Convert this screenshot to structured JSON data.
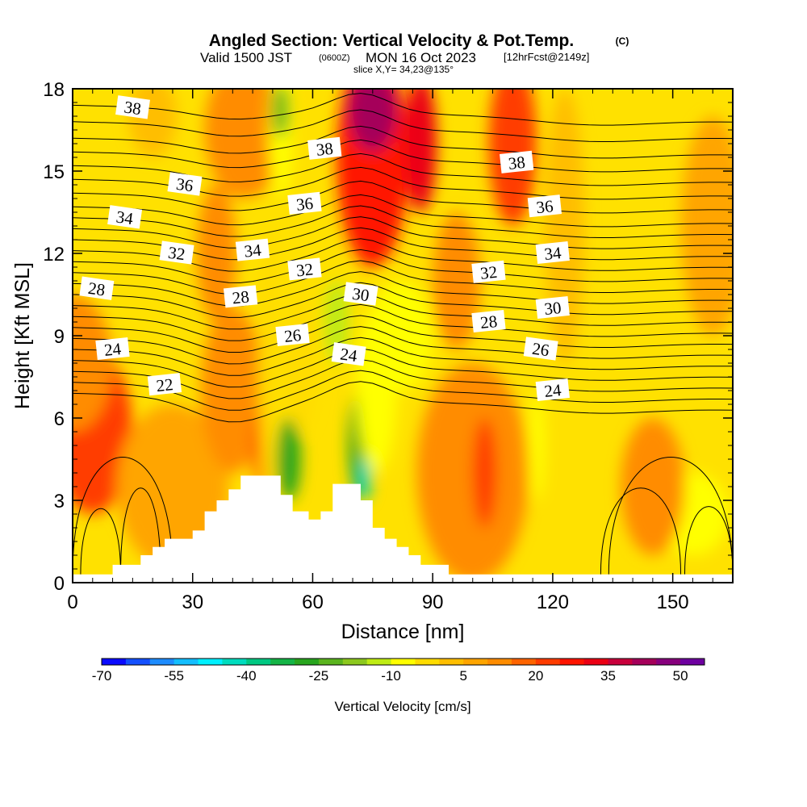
{
  "title_line1": "Angled Section: Vertical Velocity & Pot.Temp.",
  "title_tag": "(C)",
  "title_line2_a": "Valid 1500 JST",
  "title_line2_b": "(0600Z)",
  "title_line2_c": "MON 16 Oct 2023",
  "title_line2_d": "[12hrFcst@2149z]",
  "title_line3": "slice X,Y= 34,23@135°",
  "colorbar_label": "Vertical Velocity [cm/s]",
  "chart_data": {
    "type": "contour",
    "title": "Angled Section: Vertical Velocity & Pot.Temp.",
    "xlabel": "Distance [nm]",
    "ylabel": "Height [Kft MSL]",
    "xlim": [
      0,
      165
    ],
    "ylim": [
      0,
      18
    ],
    "x_ticks": [
      0,
      30,
      60,
      90,
      120,
      150
    ],
    "y_ticks": [
      0,
      3,
      6,
      9,
      12,
      15,
      18
    ],
    "colorbar": {
      "label": "Vertical Velocity [cm/s]",
      "tick_labels": [
        "-70",
        "-55",
        "-40",
        "-25",
        "-10",
        "5",
        "20",
        "35",
        "50"
      ],
      "colors": [
        "#0a0aff",
        "#1450ff",
        "#1e8cff",
        "#14beff",
        "#00f0ff",
        "#00dcbe",
        "#00c882",
        "#14b446",
        "#28a51e",
        "#5ab41e",
        "#8cc81e",
        "#beeb14",
        "#ffff00",
        "#ffdc00",
        "#ffbe00",
        "#ffa500",
        "#ff8c00",
        "#ff6400",
        "#ff3c00",
        "#ff1400",
        "#eb0014",
        "#c8003c",
        "#a5005a",
        "#87007d",
        "#6e00a0"
      ]
    },
    "terrain": [
      [
        0,
        0.3
      ],
      [
        10,
        0.3
      ],
      [
        10,
        0.65
      ],
      [
        17,
        0.65
      ],
      [
        17,
        1.0
      ],
      [
        20,
        1.0
      ],
      [
        20,
        1.3
      ],
      [
        23,
        1.3
      ],
      [
        23,
        1.6
      ],
      [
        30,
        1.6
      ],
      [
        30,
        1.9
      ],
      [
        33,
        1.9
      ],
      [
        33,
        2.6
      ],
      [
        36,
        2.6
      ],
      [
        36,
        3.0
      ],
      [
        39,
        3.0
      ],
      [
        39,
        3.4
      ],
      [
        42,
        3.4
      ],
      [
        42,
        3.9
      ],
      [
        52,
        3.9
      ],
      [
        52,
        3.2
      ],
      [
        55,
        3.2
      ],
      [
        55,
        2.6
      ],
      [
        59,
        2.6
      ],
      [
        59,
        2.3
      ],
      [
        62,
        2.3
      ],
      [
        62,
        2.6
      ],
      [
        65,
        2.6
      ],
      [
        65,
        3.6
      ],
      [
        72,
        3.6
      ],
      [
        72,
        3.0
      ],
      [
        75,
        3.0
      ],
      [
        75,
        2.0
      ],
      [
        78,
        2.0
      ],
      [
        78,
        1.6
      ],
      [
        81,
        1.6
      ],
      [
        81,
        1.3
      ],
      [
        84,
        1.3
      ],
      [
        84,
        1.0
      ],
      [
        87,
        1.0
      ],
      [
        87,
        0.65
      ],
      [
        94,
        0.65
      ],
      [
        94,
        0.3
      ],
      [
        165,
        0.3
      ]
    ],
    "velocity_cells": [
      {
        "x": 3,
        "y": 6.5,
        "rx": 6,
        "ry": 1.6,
        "value": 35
      },
      {
        "x": 5,
        "y": 5.5,
        "rx": 10,
        "ry": 3.0,
        "value": 20
      },
      {
        "x": 0,
        "y": 8.0,
        "rx": 10,
        "ry": 2.5,
        "value": 12
      },
      {
        "x": 25,
        "y": 3.5,
        "rx": 14,
        "ry": 3.0,
        "value": 5
      },
      {
        "x": 40,
        "y": 7.0,
        "rx": 8,
        "ry": 3.0,
        "value": 10
      },
      {
        "x": 43,
        "y": 16.5,
        "rx": 10,
        "ry": 2.5,
        "value": 12
      },
      {
        "x": 20,
        "y": 17.0,
        "rx": 6,
        "ry": 1.5,
        "value": 0
      },
      {
        "x": 36,
        "y": 12.0,
        "rx": 5,
        "ry": 2.5,
        "value": 12
      },
      {
        "x": 52,
        "y": 16.5,
        "rx": 3,
        "ry": 2.5,
        "value": -10
      },
      {
        "x": 52,
        "y": 17.2,
        "rx": 2,
        "ry": 1.0,
        "value": -25
      },
      {
        "x": 47,
        "y": 5.0,
        "rx": 2,
        "ry": 1.5,
        "value": 18
      },
      {
        "x": 49,
        "y": 8.0,
        "rx": 2.5,
        "ry": 5.0,
        "value": -5
      },
      {
        "x": 54,
        "y": 4.5,
        "rx": 3,
        "ry": 1.5,
        "value": -28
      },
      {
        "x": 57,
        "y": 8.0,
        "rx": 4,
        "ry": 2.5,
        "value": -5
      },
      {
        "x": 66,
        "y": 9.5,
        "rx": 3,
        "ry": 1.5,
        "value": -15
      },
      {
        "x": 72,
        "y": 5.0,
        "rx": 3,
        "ry": 2.0,
        "value": -30
      },
      {
        "x": 73,
        "y": 3.8,
        "rx": 1.5,
        "ry": 0.8,
        "value": -45
      },
      {
        "x": 76,
        "y": 7.0,
        "rx": 5,
        "ry": 3.0,
        "value": -10
      },
      {
        "x": 82,
        "y": 9.0,
        "rx": 8,
        "ry": 2.0,
        "value": -10
      },
      {
        "x": 75,
        "y": 15.5,
        "rx": 9,
        "ry": 4.0,
        "value": 25
      },
      {
        "x": 75,
        "y": 17.2,
        "rx": 6,
        "ry": 1.5,
        "value": 38
      },
      {
        "x": 87,
        "y": 16.0,
        "rx": 4,
        "ry": 2.5,
        "value": 30
      },
      {
        "x": 100,
        "y": 4.0,
        "rx": 14,
        "ry": 4.0,
        "value": 8
      },
      {
        "x": 103,
        "y": 4.0,
        "rx": 3,
        "ry": 2.0,
        "value": 18
      },
      {
        "x": 96,
        "y": 11.0,
        "rx": 6,
        "ry": 2.5,
        "value": 8
      },
      {
        "x": 110,
        "y": 16.0,
        "rx": 6,
        "ry": 3.0,
        "value": 20
      },
      {
        "x": 116,
        "y": 5.0,
        "rx": 2,
        "ry": 2.0,
        "value": -10
      },
      {
        "x": 123,
        "y": 13.0,
        "rx": 5,
        "ry": 5.0,
        "value": 0
      },
      {
        "x": 155,
        "y": 2.5,
        "rx": 9,
        "ry": 1.5,
        "value": -10
      },
      {
        "x": 160,
        "y": 13.0,
        "rx": 8,
        "ry": 4.0,
        "value": 6
      },
      {
        "x": 145,
        "y": 3.5,
        "rx": 8,
        "ry": 2.5,
        "value": 8
      }
    ],
    "isentrope_labels": [
      {
        "x": 15,
        "y": 17.3,
        "value": "38"
      },
      {
        "x": 63,
        "y": 15.8,
        "value": "38"
      },
      {
        "x": 111,
        "y": 15.3,
        "value": "38"
      },
      {
        "x": 28,
        "y": 14.5,
        "value": "36"
      },
      {
        "x": 58,
        "y": 13.8,
        "value": "36"
      },
      {
        "x": 118,
        "y": 13.7,
        "value": "36"
      },
      {
        "x": 13,
        "y": 13.3,
        "value": "34"
      },
      {
        "x": 45,
        "y": 12.1,
        "value": "34"
      },
      {
        "x": 120,
        "y": 12.0,
        "value": "34"
      },
      {
        "x": 26,
        "y": 12.0,
        "value": "32"
      },
      {
        "x": 58,
        "y": 11.4,
        "value": "32"
      },
      {
        "x": 104,
        "y": 11.3,
        "value": "32"
      },
      {
        "x": 6,
        "y": 10.7,
        "value": "28"
      },
      {
        "x": 42,
        "y": 10.4,
        "value": "28"
      },
      {
        "x": 104,
        "y": 9.5,
        "value": "28"
      },
      {
        "x": 72,
        "y": 10.5,
        "value": "30"
      },
      {
        "x": 120,
        "y": 10.0,
        "value": "30"
      },
      {
        "x": 10,
        "y": 8.5,
        "value": "24"
      },
      {
        "x": 69,
        "y": 8.3,
        "value": "24"
      },
      {
        "x": 120,
        "y": 7.0,
        "value": "24"
      },
      {
        "x": 55,
        "y": 9.0,
        "value": "26"
      },
      {
        "x": 117,
        "y": 8.5,
        "value": "26"
      },
      {
        "x": 23,
        "y": 7.2,
        "value": "22"
      }
    ]
  }
}
